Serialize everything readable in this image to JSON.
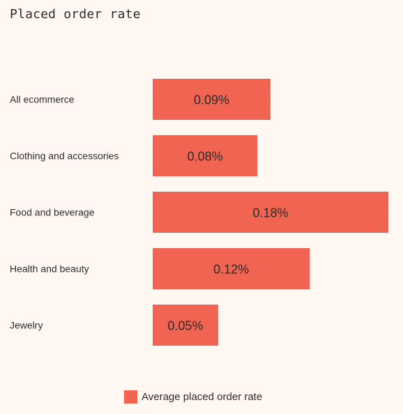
{
  "colors": {
    "bar": "#f16451",
    "background": "#fff8f2",
    "text": "#2b2b2b"
  },
  "chart_data": {
    "type": "bar",
    "orientation": "horizontal",
    "title": "Placed order rate",
    "categories": [
      "All ecommerce",
      "Clothing and accessories",
      "Food and beverage",
      "Health and beauty",
      "Jewelry"
    ],
    "series": [
      {
        "name": "Average placed order rate",
        "values": [
          0.09,
          0.08,
          0.18,
          0.12,
          0.05
        ],
        "value_labels": [
          "0.09%",
          "0.08%",
          "0.18%",
          "0.12%",
          "0.05%"
        ]
      }
    ],
    "xlim": [
      0,
      0.18
    ],
    "unit": "%",
    "grid": false,
    "legend": "bottom-center"
  }
}
